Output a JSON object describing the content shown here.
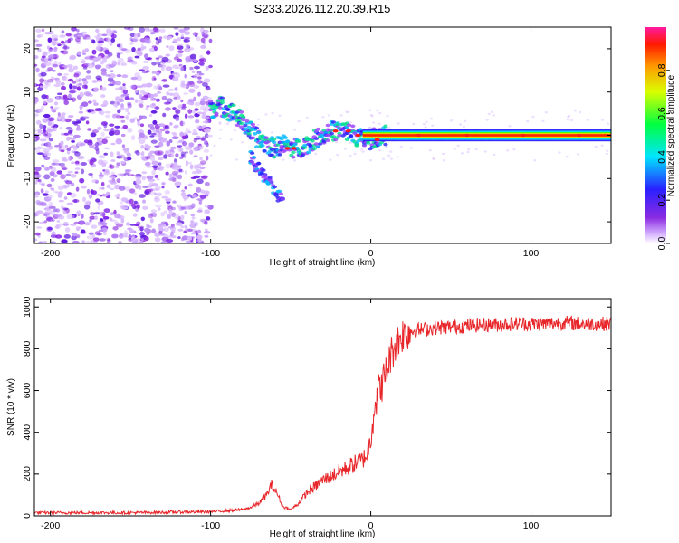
{
  "title": "S233.2026.112.20.39.R15",
  "chart_data": [
    {
      "type": "heatmap",
      "name": "spectrogram",
      "title": "S233.2026.112.20.39.R15",
      "xlabel": "Height of straight line (km)",
      "ylabel": "Frequency (Hz)",
      "xlim": [
        -210,
        150
      ],
      "ylim": [
        -25,
        25
      ],
      "xticks": [
        -200,
        -100,
        0,
        100
      ],
      "yticks": [
        -20,
        -10,
        0,
        10,
        20
      ],
      "ridge": {
        "x": [
          -100,
          -95,
          -90,
          -85,
          -80,
          -75,
          -70,
          -65,
          -60,
          -55,
          -50,
          -45,
          -40,
          -35,
          -30,
          -25,
          -20,
          -15,
          -10,
          -5,
          0,
          5,
          10,
          20,
          40,
          60,
          80,
          100,
          120,
          150
        ],
        "y": [
          6,
          7,
          6,
          5,
          3,
          1,
          -1,
          -2,
          -3,
          -2,
          -3,
          -3,
          -2,
          -1,
          0,
          1,
          1,
          1,
          0,
          -1,
          -1,
          0,
          0,
          0,
          0,
          0,
          0,
          0,
          0,
          0
        ]
      },
      "branch": {
        "x": [
          -75,
          -70,
          -65,
          -60,
          -55
        ],
        "y": [
          -5,
          -8,
          -10,
          -13,
          -15
        ]
      }
    },
    {
      "type": "line",
      "name": "snr",
      "xlabel": "Height of straight line (km)",
      "ylabel": "SNR (10 * v/v)",
      "xlim": [
        -210,
        150
      ],
      "ylim": [
        0,
        1040
      ],
      "xticks": [
        -200,
        -100,
        0,
        100
      ],
      "yticks": [
        0,
        200,
        400,
        600,
        800,
        1000
      ],
      "series": [
        {
          "name": "SNR",
          "color": "#e8262a",
          "x": [
            -210,
            -180,
            -150,
            -120,
            -100,
            -90,
            -80,
            -75,
            -70,
            -65,
            -62,
            -58,
            -55,
            -50,
            -45,
            -40,
            -35,
            -30,
            -25,
            -20,
            -15,
            -10,
            -5,
            -2,
            0,
            2,
            5,
            8,
            10,
            12,
            15,
            18,
            20,
            25,
            30,
            40,
            50,
            60,
            70,
            80,
            90,
            100,
            110,
            120,
            130,
            140,
            150
          ],
          "y": [
            15,
            15,
            15,
            18,
            20,
            25,
            30,
            40,
            60,
            100,
            150,
            100,
            45,
            30,
            60,
            110,
            140,
            170,
            190,
            210,
            230,
            250,
            270,
            300,
            380,
            520,
            600,
            650,
            700,
            760,
            820,
            850,
            870,
            885,
            890,
            900,
            905,
            910,
            915,
            915,
            920,
            920,
            920,
            925,
            920,
            920,
            920
          ]
        }
      ]
    }
  ],
  "colorbar": {
    "label": "Normalized spectral amplitude",
    "range": [
      0,
      1
    ],
    "ticks": [
      0,
      0.2,
      0.4,
      0.6,
      0.8
    ],
    "tick_labels": [
      "0.0",
      "0.2",
      "0.4",
      "0.6",
      "0.8"
    ]
  },
  "colors": {
    "snr_line": "#e8262a",
    "scatter": "#8e2de2"
  }
}
